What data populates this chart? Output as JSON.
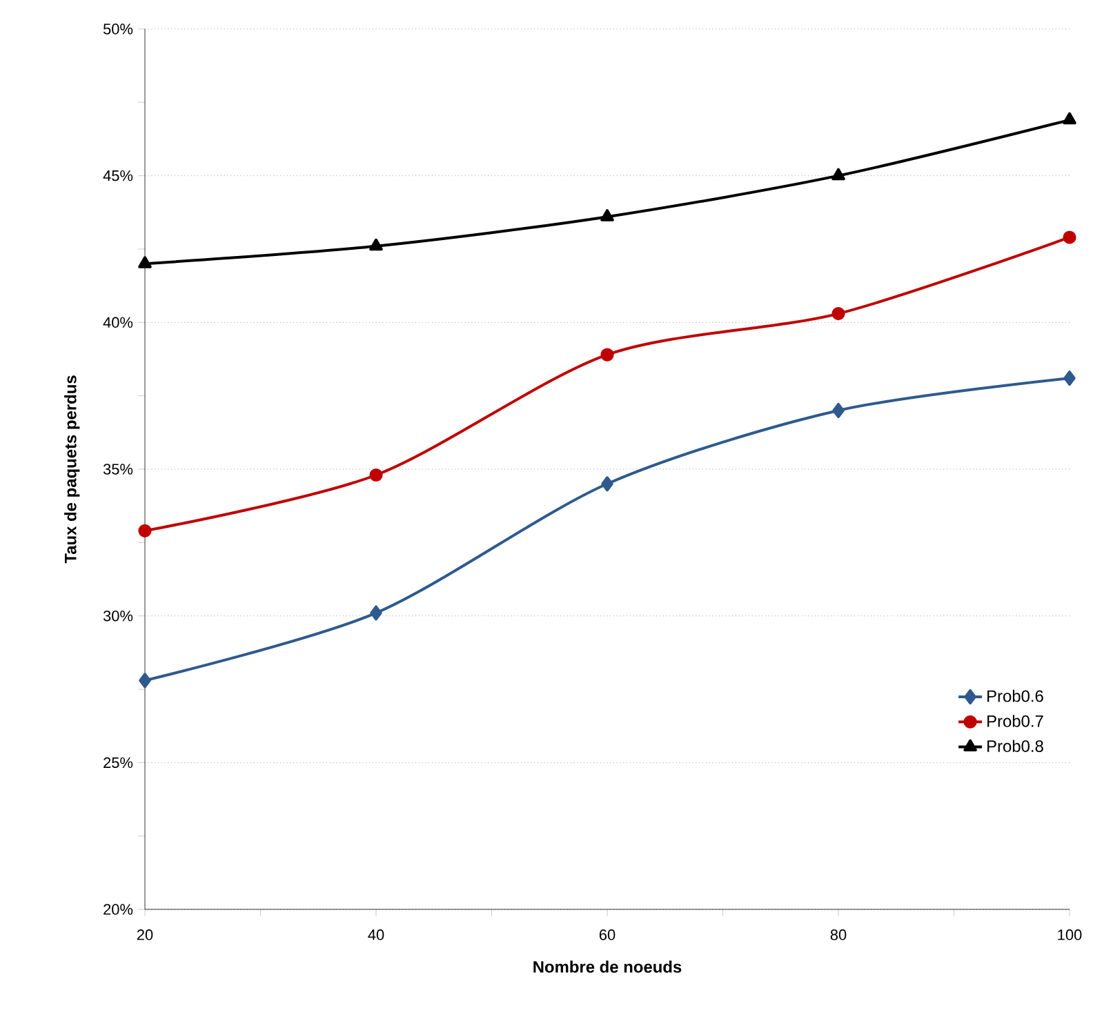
{
  "chart_data": {
    "type": "line",
    "xlabel": "Nombre de noeuds",
    "ylabel": "Taux de paquets perdus",
    "x": [
      20,
      40,
      60,
      80,
      100
    ],
    "series": [
      {
        "name": "Prob0.6",
        "color": "#2e5a8e",
        "marker": "diamond",
        "values": [
          27.8,
          30.1,
          34.5,
          37.0,
          38.1
        ]
      },
      {
        "name": "Prob0.7",
        "color": "#c00000",
        "marker": "circle",
        "values": [
          32.9,
          34.8,
          38.9,
          40.3,
          42.9
        ]
      },
      {
        "name": "Prob0.8",
        "color": "#000000",
        "marker": "triangle",
        "values": [
          42.0,
          42.6,
          43.6,
          45.0,
          46.9
        ]
      }
    ],
    "xlim": [
      20,
      100
    ],
    "xticks": [
      20,
      {
        "value": 30,
        "label": null
      },
      40,
      {
        "value": 50,
        "label": null
      },
      60,
      {
        "value": 70,
        "label": null
      },
      80,
      {
        "value": 90,
        "label": null
      },
      100
    ],
    "ylim": [
      20,
      50
    ],
    "yticks": [
      {
        "value": 20,
        "label": "20%"
      },
      {
        "value": 22.5,
        "label": null
      },
      {
        "value": 25,
        "label": "25%"
      },
      {
        "value": 27.5,
        "label": null
      },
      {
        "value": 30,
        "label": "30%"
      },
      {
        "value": 32.5,
        "label": null
      },
      {
        "value": 35,
        "label": "35%"
      },
      {
        "value": 37.5,
        "label": null
      },
      {
        "value": 40,
        "label": "40%"
      },
      {
        "value": 42.5,
        "label": null
      },
      {
        "value": 45,
        "label": "45%"
      },
      {
        "value": 47.5,
        "label": null
      },
      {
        "value": 50,
        "label": "50%"
      }
    ],
    "grid": "y",
    "legend": "bottom right",
    "line_style": "solid"
  }
}
